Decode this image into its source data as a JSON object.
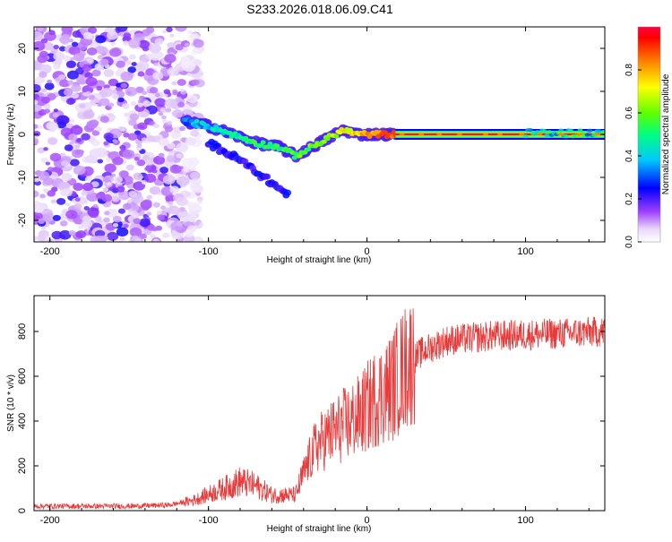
{
  "title": "S233.2026.018.06.09.C41",
  "colors": {
    "snr_line": "#e83a3a",
    "axis": "#000000",
    "spectrum_band": "#d92020"
  },
  "chart_data": [
    {
      "type": "heatmap",
      "name": "spectrogram",
      "xlabel": "Height of straight line (km)",
      "ylabel": "Frequency (Hz)",
      "xlim": [
        -210,
        150
      ],
      "ylim": [
        -25,
        25
      ],
      "x_ticks": [
        "-200",
        "-100",
        "0",
        "100"
      ],
      "x_tick_values": [
        -200,
        -100,
        0,
        100
      ],
      "y_ticks": [
        "-20",
        "-10",
        "0",
        "10",
        "20"
      ],
      "y_tick_values": [
        -20,
        -10,
        0,
        10,
        20
      ],
      "colorbar": {
        "label": "Normalized spectral amplitude",
        "range": [
          0,
          1
        ],
        "ticks": [
          "0.0",
          "0.2",
          "0.4",
          "0.6",
          "0.8"
        ],
        "tick_values": [
          0.0,
          0.2,
          0.4,
          0.6,
          0.8
        ]
      },
      "features": {
        "noise_region_km": [
          -210,
          -115
        ],
        "trace_points": [
          {
            "x": -115,
            "f": 3,
            "amp": 0.35
          },
          {
            "x": -100,
            "f": 2,
            "amp": 0.4
          },
          {
            "x": -85,
            "f": 0,
            "amp": 0.45
          },
          {
            "x": -70,
            "f": -2,
            "amp": 0.5
          },
          {
            "x": -55,
            "f": -3,
            "amp": 0.5
          },
          {
            "x": -45,
            "f": -5,
            "amp": 0.55
          },
          {
            "x": -35,
            "f": -3,
            "amp": 0.6
          },
          {
            "x": -25,
            "f": -1,
            "amp": 0.65
          },
          {
            "x": -15,
            "f": 1,
            "amp": 0.7
          },
          {
            "x": -5,
            "f": 0,
            "amp": 0.75
          },
          {
            "x": 10,
            "f": 0,
            "amp": 0.85
          },
          {
            "x": 20,
            "f": 0,
            "amp": 0.95
          },
          {
            "x": 100,
            "f": 0,
            "amp": 0.95
          },
          {
            "x": 150,
            "f": 0.5,
            "amp": 0.9
          }
        ],
        "lower_branch": [
          {
            "x": -100,
            "f": -2
          },
          {
            "x": -80,
            "f": -6
          },
          {
            "x": -65,
            "f": -10
          },
          {
            "x": -50,
            "f": -14
          }
        ]
      }
    },
    {
      "type": "line",
      "name": "snr",
      "xlabel": "Height of straight line (km)",
      "ylabel": "SNR (10 * v/v)",
      "xlim": [
        -210,
        150
      ],
      "ylim": [
        0,
        960
      ],
      "x_ticks": [
        "-200",
        "-100",
        "0",
        "100"
      ],
      "x_tick_values": [
        -200,
        -100,
        0,
        100
      ],
      "y_ticks": [
        "0",
        "200",
        "400",
        "600",
        "800"
      ],
      "y_tick_values": [
        0,
        200,
        400,
        600,
        800
      ],
      "trend": {
        "x": [
          -210,
          -150,
          -125,
          -110,
          -90,
          -80,
          -70,
          -60,
          -45,
          -38,
          -32,
          -25,
          -15,
          -5,
          5,
          15,
          25,
          35,
          50,
          80,
          120,
          150
        ],
        "y": [
          20,
          20,
          25,
          45,
          100,
          130,
          110,
          70,
          70,
          200,
          290,
          330,
          380,
          420,
          500,
          550,
          650,
          710,
          760,
          780,
          790,
          800
        ]
      }
    }
  ]
}
